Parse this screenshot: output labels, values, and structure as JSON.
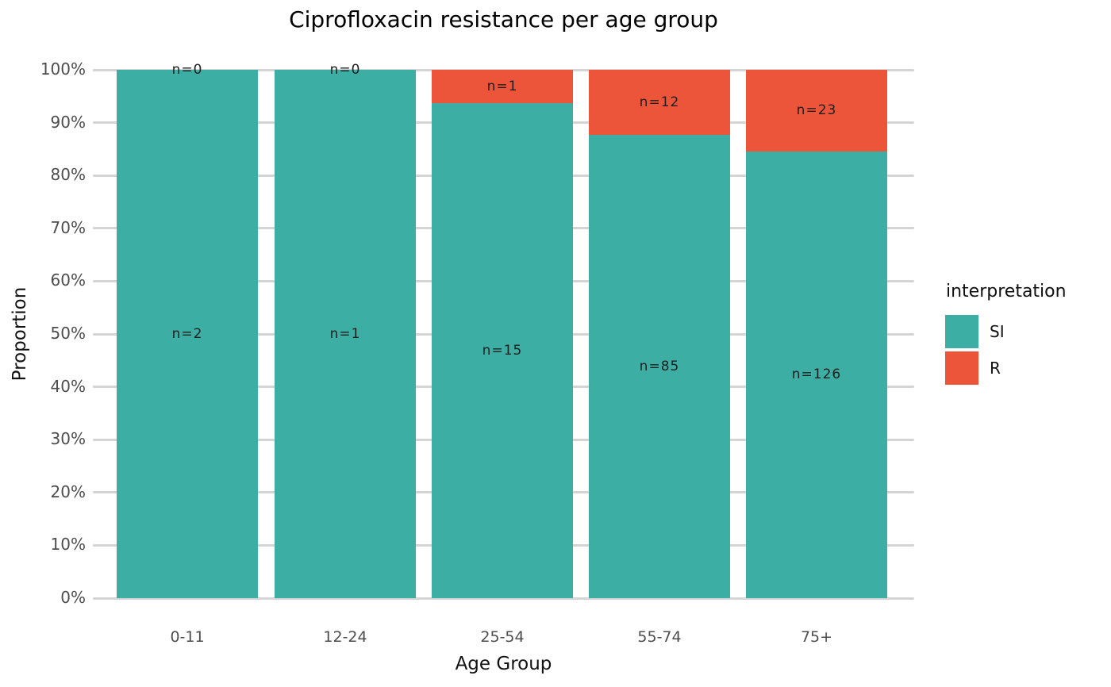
{
  "figure": {
    "background": "#ffffff"
  },
  "chart_data": {
    "type": "bar",
    "stacked": true,
    "orientation": "vertical",
    "title": "Ciprofloxacin resistance per age group",
    "xlabel": "Age Group",
    "ylabel": "Proportion",
    "categories": [
      "0-11",
      "12-24",
      "25-54",
      "55-74",
      "75+"
    ],
    "series": [
      {
        "name": "SI",
        "color": "#3CAEA3",
        "counts": [
          2,
          1,
          15,
          85,
          126
        ],
        "labels": [
          "n=2",
          "n=1",
          "n=15",
          "n=85",
          "n=126"
        ]
      },
      {
        "name": "R",
        "color": "#ED553B",
        "counts": [
          0,
          0,
          1,
          12,
          23
        ],
        "labels": [
          "n=0",
          "n=0",
          "n=1",
          "n=12",
          "n=23"
        ]
      }
    ],
    "proportions_si_pct": [
      100,
      100,
      93.75,
      87.63,
      84.56
    ],
    "y_ticks": [
      "0%",
      "10%",
      "20%",
      "30%",
      "40%",
      "50%",
      "60%",
      "70%",
      "80%",
      "90%",
      "100%"
    ],
    "ylim": [
      0,
      100
    ],
    "grid": "horizontal",
    "grid_color": "#d4d4d4",
    "legend": {
      "title": "interpretation",
      "position": "right",
      "items": [
        {
          "label": "SI",
          "color": "#3CAEA3"
        },
        {
          "label": "R",
          "color": "#ED553B"
        }
      ]
    }
  }
}
